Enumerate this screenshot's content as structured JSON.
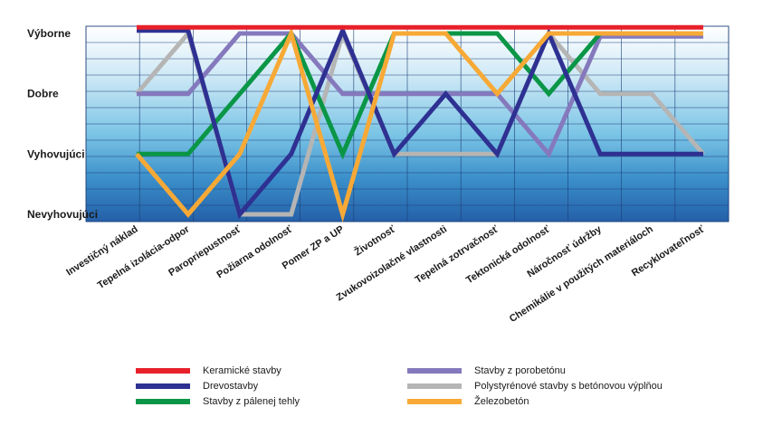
{
  "chart_data": {
    "type": "line",
    "y_levels": [
      "Nevyhovujúci",
      "Vyhovujúci",
      "Dobre",
      "Výborne"
    ],
    "ylim": [
      0,
      3
    ],
    "categories": [
      "Investičný náklad",
      "Tepelná izolácia-odpor",
      "Paropriepustnosť",
      "Požiarna odolnosť",
      "Pomer ZP a UP",
      "Životnosť",
      "Zvukovoizolačné vlastnosti",
      "Tepelná zotrvačnosť",
      "Tektonická odolnosť",
      "Náročnosť údržby",
      "Chemikálie v použitých materiáloch",
      "Recyklovateľnosť"
    ],
    "series": [
      {
        "name": "Keramické stavby",
        "color": "#e8202a",
        "values": [
          3.1,
          3.1,
          3.1,
          3.1,
          3.1,
          3.1,
          3.1,
          3.1,
          3.1,
          3.1,
          3.1,
          3.1
        ]
      },
      {
        "name": "Drevostavby",
        "color": "#2e3192",
        "values": [
          3.05,
          3.05,
          0,
          1,
          3.05,
          1,
          2,
          1,
          3,
          1,
          1,
          1
        ]
      },
      {
        "name": "Stavby z pálenej tehly",
        "color": "#0a9646",
        "values": [
          1,
          1,
          2,
          3,
          1,
          3,
          3,
          3,
          2,
          3,
          3,
          3
        ]
      },
      {
        "name": "Stavby z porobetónu",
        "color": "#8579bd",
        "values": [
          2,
          2,
          3,
          3,
          2,
          2,
          2,
          2,
          1,
          2.95,
          2.95,
          2.95
        ]
      },
      {
        "name": "Polystyrénové stavby s betónovou výplňou",
        "color": "#b5b5b5",
        "values": [
          2,
          3,
          0,
          0,
          3,
          1,
          1,
          1,
          3,
          2,
          2,
          1
        ]
      },
      {
        "name": "Železobetón",
        "color": "#f7a936",
        "values": [
          1,
          0,
          1,
          3,
          0,
          3,
          3,
          2,
          3,
          3,
          3,
          3
        ]
      }
    ],
    "title": "",
    "xlabel": "",
    "ylabel": "",
    "grid": true,
    "legend_position": "bottom"
  }
}
